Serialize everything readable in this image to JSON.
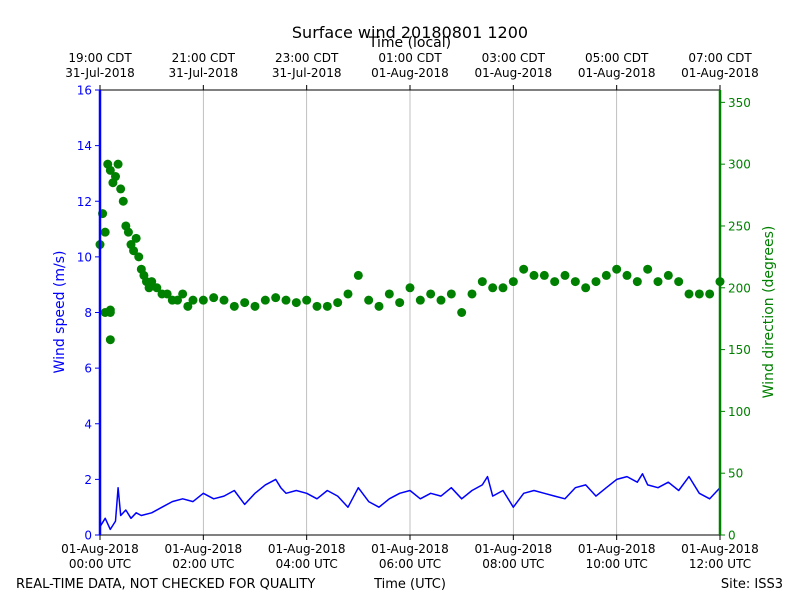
{
  "chart_data": {
    "type": "line",
    "title": "Surface wind 20180801 1200",
    "top_axis_label": "Time (local)",
    "xlabel": "Time (UTC)",
    "ylabel_left": "Wind speed (m/s)",
    "ylabel_right": "Wind direction (degrees)",
    "ylim_left": [
      0,
      16
    ],
    "ylim_right": [
      0,
      360
    ],
    "xlim_hours": [
      0,
      12
    ],
    "grid": "vertical",
    "colors": {
      "speed": "#0000ff",
      "direction": "#008000",
      "grid": "#b0b0b0"
    },
    "left_ticks": [
      "0",
      "2",
      "4",
      "6",
      "8",
      "10",
      "12",
      "14",
      "16"
    ],
    "right_ticks": [
      "0",
      "50",
      "100",
      "150",
      "200",
      "250",
      "300",
      "350"
    ],
    "bottom_ticks": [
      {
        "hour": 0,
        "line1": "01-Aug-2018",
        "line2": "00:00 UTC"
      },
      {
        "hour": 2,
        "line1": "01-Aug-2018",
        "line2": "02:00 UTC"
      },
      {
        "hour": 4,
        "line1": "01-Aug-2018",
        "line2": "04:00 UTC"
      },
      {
        "hour": 6,
        "line1": "01-Aug-2018",
        "line2": "06:00 UTC"
      },
      {
        "hour": 8,
        "line1": "01-Aug-2018",
        "line2": "08:00 UTC"
      },
      {
        "hour": 10,
        "line1": "01-Aug-2018",
        "line2": "10:00 UTC"
      },
      {
        "hour": 12,
        "line1": "01-Aug-2018",
        "line2": "12:00 UTC"
      }
    ],
    "top_ticks": [
      {
        "hour": 0,
        "line1": "19:00 CDT",
        "line2": "31-Jul-2018"
      },
      {
        "hour": 2,
        "line1": "21:00 CDT",
        "line2": "31-Jul-2018"
      },
      {
        "hour": 4,
        "line1": "23:00 CDT",
        "line2": "31-Jul-2018"
      },
      {
        "hour": 6,
        "line1": "01:00 CDT",
        "line2": "01-Aug-2018"
      },
      {
        "hour": 8,
        "line1": "03:00 CDT",
        "line2": "01-Aug-2018"
      },
      {
        "hour": 10,
        "line1": "05:00 CDT",
        "line2": "01-Aug-2018"
      },
      {
        "hour": 12,
        "line1": "07:00 CDT",
        "line2": "01-Aug-2018"
      }
    ],
    "series": [
      {
        "name": "Wind speed",
        "axis": "left",
        "style": "line",
        "x": [
          0.0,
          0.1,
          0.2,
          0.3,
          0.35,
          0.4,
          0.5,
          0.6,
          0.7,
          0.8,
          1.0,
          1.2,
          1.4,
          1.6,
          1.8,
          2.0,
          2.2,
          2.4,
          2.6,
          2.8,
          3.0,
          3.2,
          3.4,
          3.5,
          3.6,
          3.8,
          4.0,
          4.2,
          4.4,
          4.6,
          4.8,
          5.0,
          5.2,
          5.4,
          5.6,
          5.8,
          6.0,
          6.2,
          6.4,
          6.6,
          6.8,
          7.0,
          7.2,
          7.4,
          7.5,
          7.6,
          7.8,
          8.0,
          8.2,
          8.4,
          8.6,
          8.8,
          9.0,
          9.2,
          9.4,
          9.6,
          9.8,
          10.0,
          10.2,
          10.4,
          10.5,
          10.6,
          10.8,
          11.0,
          11.2,
          11.4,
          11.6,
          11.8,
          12.0
        ],
        "values": [
          0.3,
          0.6,
          0.2,
          0.5,
          1.7,
          0.7,
          0.9,
          0.6,
          0.8,
          0.7,
          0.8,
          1.0,
          1.2,
          1.3,
          1.2,
          1.5,
          1.3,
          1.4,
          1.6,
          1.1,
          1.5,
          1.8,
          2.0,
          1.7,
          1.5,
          1.6,
          1.5,
          1.3,
          1.6,
          1.4,
          1.0,
          1.7,
          1.2,
          1.0,
          1.3,
          1.5,
          1.6,
          1.3,
          1.5,
          1.4,
          1.7,
          1.3,
          1.6,
          1.8,
          2.1,
          1.4,
          1.6,
          1.0,
          1.5,
          1.6,
          1.5,
          1.4,
          1.3,
          1.7,
          1.8,
          1.4,
          1.7,
          2.0,
          2.1,
          1.9,
          2.2,
          1.8,
          1.7,
          1.9,
          1.6,
          2.1,
          1.5,
          1.3,
          1.7
        ]
      },
      {
        "name": "Wind direction",
        "axis": "right",
        "style": "markers",
        "x": [
          0.0,
          0.05,
          0.1,
          0.15,
          0.2,
          0.25,
          0.3,
          0.35,
          0.4,
          0.45,
          0.5,
          0.55,
          0.6,
          0.65,
          0.7,
          0.75,
          0.8,
          0.85,
          0.9,
          0.95,
          1.0,
          1.1,
          1.2,
          1.3,
          1.4,
          1.5,
          1.6,
          1.7,
          1.8,
          2.0,
          2.2,
          2.4,
          2.6,
          2.8,
          3.0,
          3.2,
          3.4,
          3.6,
          3.8,
          4.0,
          4.2,
          4.4,
          4.6,
          4.8,
          5.0,
          5.2,
          5.4,
          5.6,
          5.8,
          6.0,
          6.2,
          6.4,
          6.6,
          6.8,
          7.0,
          7.2,
          7.4,
          7.6,
          7.8,
          8.0,
          8.2,
          8.4,
          8.6,
          8.8,
          9.0,
          9.2,
          9.4,
          9.6,
          9.8,
          10.0,
          10.2,
          10.4,
          10.6,
          10.8,
          11.0,
          11.2,
          11.4,
          11.6,
          11.8,
          12.0,
          0.1,
          0.2,
          0.2,
          0.2
        ],
        "values": [
          235,
          260,
          245,
          300,
          295,
          285,
          290,
          300,
          280,
          270,
          250,
          245,
          235,
          230,
          240,
          225,
          215,
          210,
          205,
          200,
          205,
          200,
          195,
          195,
          190,
          190,
          195,
          185,
          190,
          190,
          192,
          190,
          185,
          188,
          185,
          190,
          192,
          190,
          188,
          190,
          185,
          185,
          188,
          195,
          210,
          190,
          185,
          195,
          188,
          200,
          190,
          195,
          190,
          195,
          180,
          195,
          205,
          200,
          200,
          205,
          215,
          210,
          210,
          205,
          210,
          205,
          200,
          205,
          210,
          215,
          210,
          205,
          215,
          205,
          210,
          205,
          195,
          195,
          195,
          205,
          180,
          182,
          180,
          158
        ]
      }
    ]
  },
  "footer": {
    "left": "REAL-TIME DATA, NOT CHECKED FOR QUALITY",
    "center": "Time (UTC)",
    "right": "Site: ISS3"
  }
}
